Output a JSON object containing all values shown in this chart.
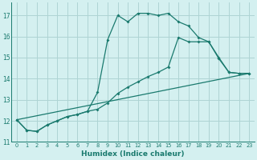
{
  "xlabel": "Humidex (Indice chaleur)",
  "bg_color": "#d4f0f0",
  "grid_color": "#aed4d4",
  "line_color": "#1a7a6e",
  "xlim": [
    -0.5,
    23.5
  ],
  "ylim": [
    11,
    17.6
  ],
  "xticks": [
    0,
    1,
    2,
    3,
    4,
    5,
    6,
    7,
    8,
    9,
    10,
    11,
    12,
    13,
    14,
    15,
    16,
    17,
    18,
    19,
    20,
    21,
    22,
    23
  ],
  "yticks": [
    11,
    12,
    13,
    14,
    15,
    16,
    17
  ],
  "line1_x": [
    0,
    1,
    2,
    3,
    4,
    5,
    6,
    7,
    8,
    9,
    10,
    11,
    12,
    13,
    14,
    15,
    16,
    17,
    18,
    19,
    20,
    21,
    22,
    23
  ],
  "line1_y": [
    12.05,
    11.55,
    11.5,
    11.8,
    12.0,
    12.2,
    12.3,
    12.45,
    13.35,
    15.85,
    17.0,
    16.7,
    17.1,
    17.1,
    17.0,
    17.1,
    16.7,
    16.5,
    15.95,
    15.75,
    14.95,
    14.3,
    14.25,
    14.25
  ],
  "line2_x": [
    0,
    1,
    2,
    3,
    4,
    5,
    6,
    7,
    8,
    9,
    10,
    11,
    12,
    13,
    14,
    15,
    16,
    17,
    18,
    19,
    20,
    21,
    22,
    23
  ],
  "line2_y": [
    12.05,
    11.55,
    11.5,
    11.8,
    12.0,
    12.2,
    12.3,
    12.45,
    12.55,
    12.85,
    13.3,
    13.6,
    13.85,
    14.1,
    14.3,
    14.55,
    15.95,
    15.75,
    15.75,
    15.75,
    15.0,
    14.3,
    14.25,
    14.25
  ],
  "line3_x": [
    0,
    23
  ],
  "line3_y": [
    12.05,
    14.25
  ]
}
